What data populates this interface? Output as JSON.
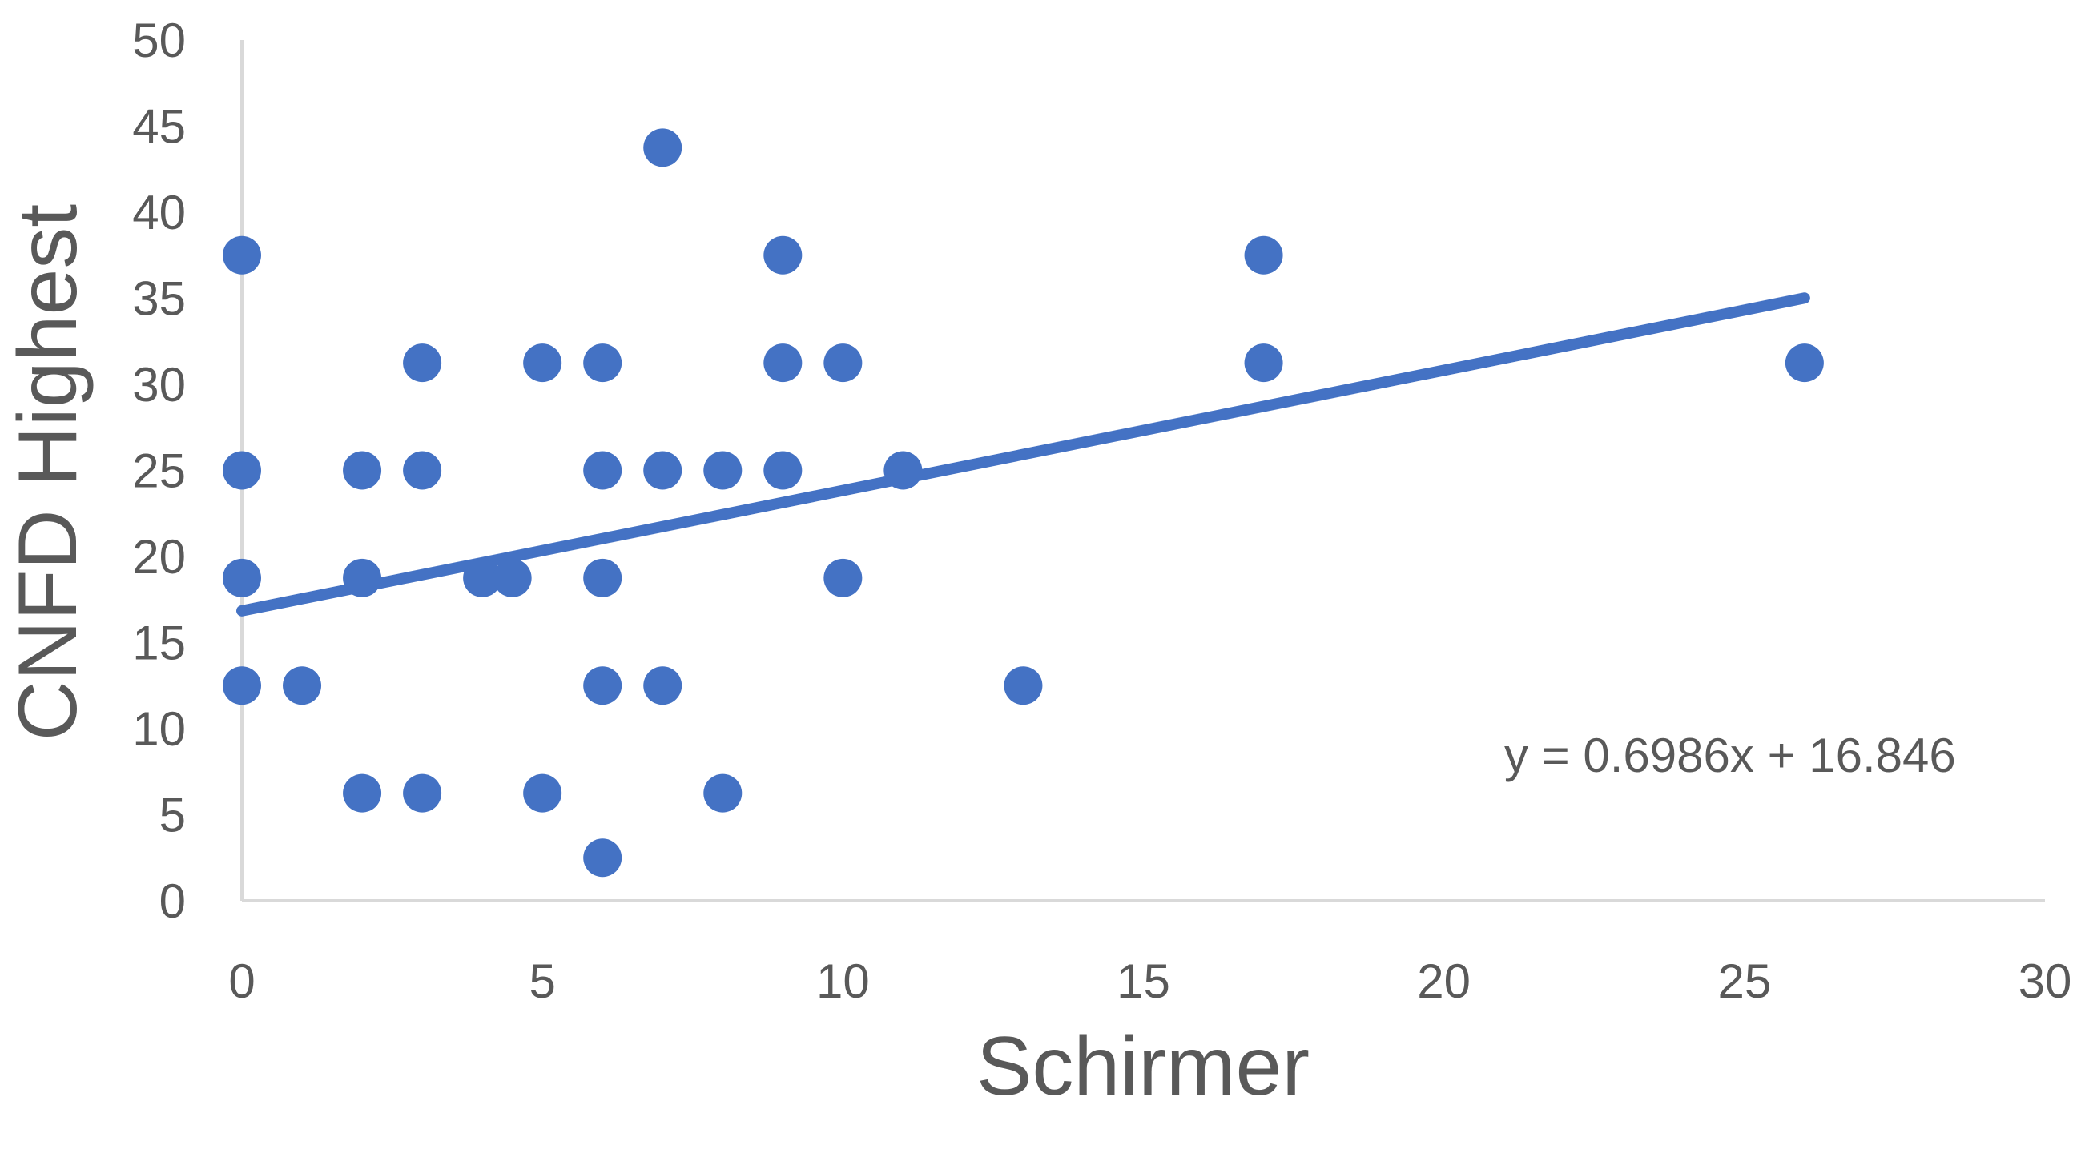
{
  "chart_data": {
    "type": "scatter",
    "title": "",
    "xlabel": "Schirmer",
    "ylabel": "CNFD Highest",
    "xlim": [
      0,
      30
    ],
    "ylim": [
      0,
      50
    ],
    "x_ticks": [
      "0",
      "5",
      "10",
      "15",
      "20",
      "25",
      "30"
    ],
    "y_ticks": [
      "0",
      "5",
      "10",
      "15",
      "20",
      "25",
      "30",
      "35",
      "40",
      "45",
      "50"
    ],
    "grid": false,
    "legend": "none",
    "series": [
      {
        "color": "#4472C4",
        "points": [
          {
            "x": 0,
            "y": 37.5
          },
          {
            "x": 0,
            "y": 25
          },
          {
            "x": 0,
            "y": 18.75
          },
          {
            "x": 0,
            "y": 12.5
          },
          {
            "x": 1,
            "y": 12.5
          },
          {
            "x": 2,
            "y": 25
          },
          {
            "x": 2,
            "y": 18.75
          },
          {
            "x": 2,
            "y": 6.25
          },
          {
            "x": 3,
            "y": 31.25
          },
          {
            "x": 3,
            "y": 25
          },
          {
            "x": 3,
            "y": 6.25
          },
          {
            "x": 4,
            "y": 18.75
          },
          {
            "x": 4.5,
            "y": 18.75
          },
          {
            "x": 5,
            "y": 31.25
          },
          {
            "x": 5,
            "y": 6.25
          },
          {
            "x": 6,
            "y": 31.25
          },
          {
            "x": 6,
            "y": 25
          },
          {
            "x": 6,
            "y": 18.75
          },
          {
            "x": 6,
            "y": 12.5
          },
          {
            "x": 6,
            "y": 2.5
          },
          {
            "x": 7,
            "y": 43.75
          },
          {
            "x": 7,
            "y": 25
          },
          {
            "x": 7,
            "y": 12.5
          },
          {
            "x": 8,
            "y": 25
          },
          {
            "x": 8,
            "y": 6.25
          },
          {
            "x": 9,
            "y": 37.5
          },
          {
            "x": 9,
            "y": 31.25
          },
          {
            "x": 9,
            "y": 25
          },
          {
            "x": 10,
            "y": 31.25
          },
          {
            "x": 10,
            "y": 18.75
          },
          {
            "x": 11,
            "y": 25
          },
          {
            "x": 13,
            "y": 12.5
          },
          {
            "x": 17,
            "y": 37.5
          },
          {
            "x": 17,
            "y": 31.25
          },
          {
            "x": 26,
            "y": 31.25
          }
        ]
      }
    ],
    "trendline": {
      "type": "linear",
      "slope": 0.6986,
      "intercept": 16.846,
      "x_range": [
        0,
        26
      ],
      "color": "#4472C4",
      "equation_label": "y = 0.6986x + 16.846"
    }
  }
}
